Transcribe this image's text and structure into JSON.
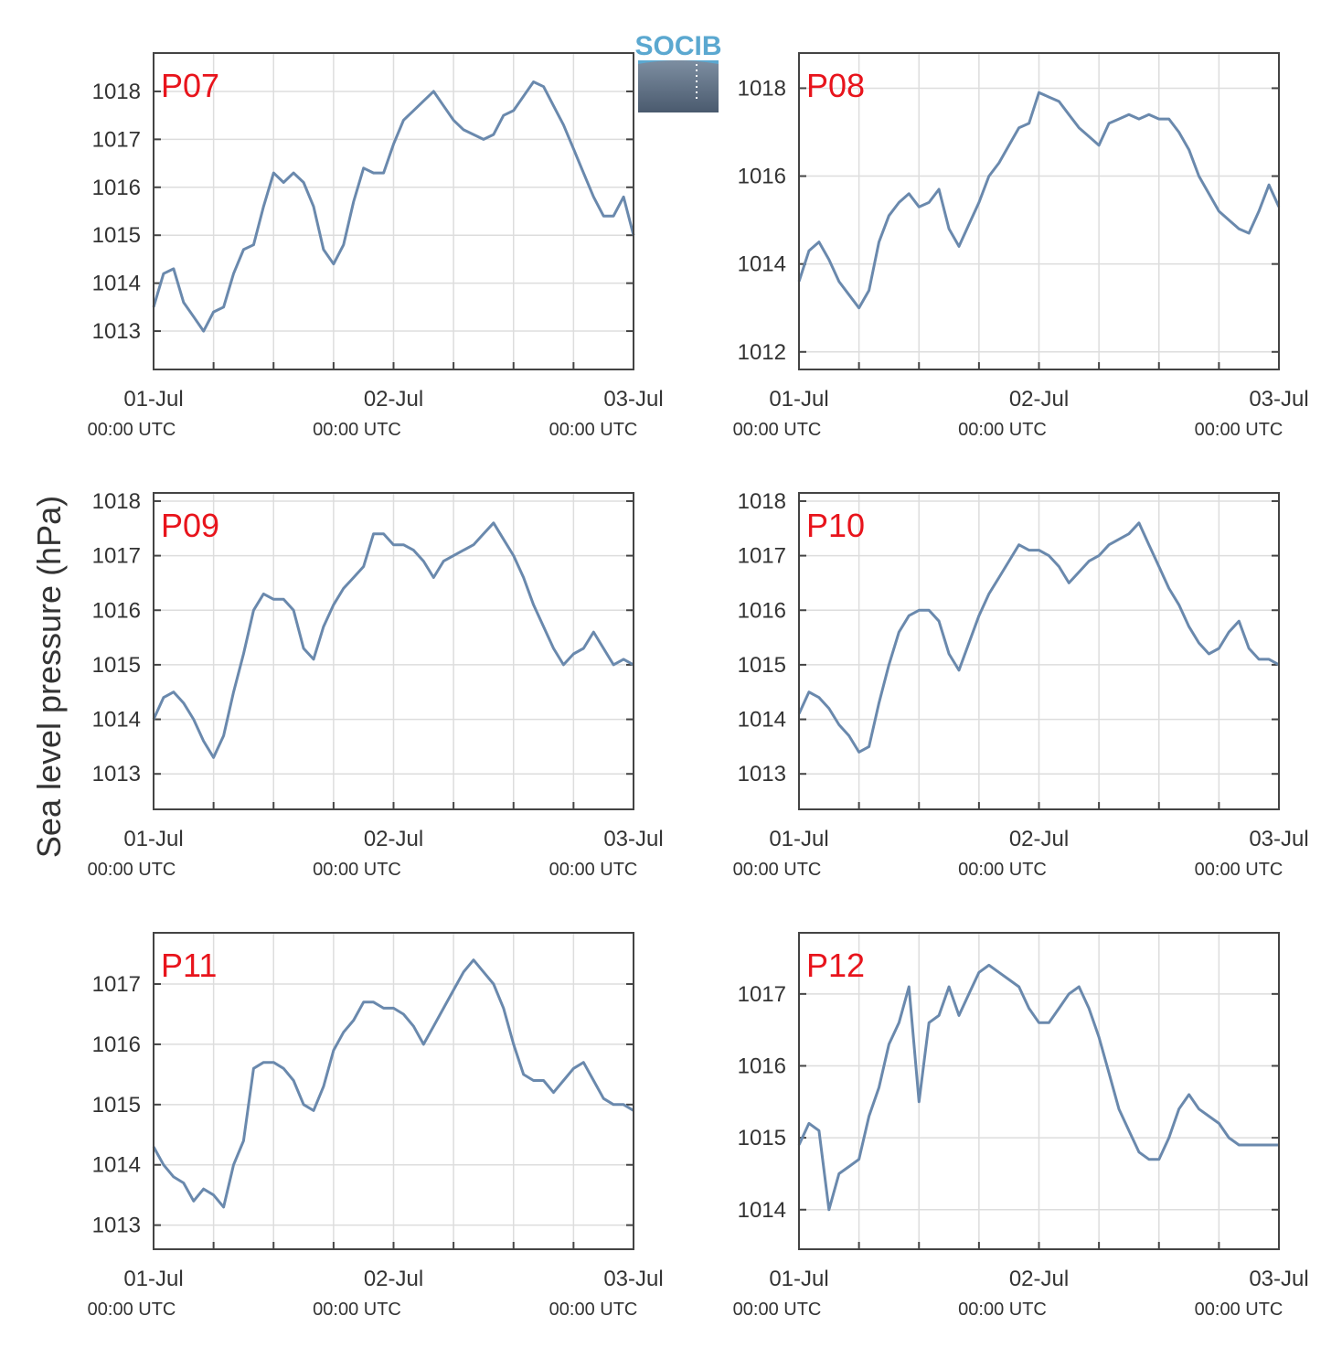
{
  "figure": {
    "ylabel": "Sea level pressure (hPa)",
    "logo_text": "SOCIB",
    "colors": {
      "series": "#6a89ad",
      "panel_label": "#e8141c",
      "grid": "#dddddd",
      "frame": "#444444",
      "logo_top": "#5ba8d0",
      "logo_bottom": "#4a5a6e"
    }
  },
  "chart_data": [
    {
      "type": "line",
      "panel_label": "P07",
      "x_ticks": [
        {
          "date": "01-Jul",
          "time": "00:00 UTC"
        },
        {
          "date": "02-Jul",
          "time": "00:00 UTC"
        },
        {
          "date": "03-Jul",
          "time": "00:00 UTC"
        }
      ],
      "xlim": [
        "2024-07-01T00:00",
        "2024-07-03T00:00"
      ],
      "ylim": [
        1012.2,
        1018.8
      ],
      "yticks": [
        1013,
        1014,
        1015,
        1016,
        1017,
        1018
      ],
      "grid": true,
      "x_hours": [
        0,
        1,
        2,
        3,
        4,
        5,
        6,
        7,
        8,
        9,
        10,
        11,
        12,
        13,
        14,
        15,
        16,
        17,
        18,
        19,
        20,
        21,
        22,
        23,
        24,
        25,
        26,
        27,
        28,
        29,
        30,
        31,
        32,
        33,
        34,
        35,
        36,
        37,
        38,
        39,
        40,
        41,
        42,
        43,
        44,
        45,
        46,
        47,
        48
      ],
      "values": [
        1013.5,
        1014.2,
        1014.3,
        1013.6,
        1013.3,
        1013.0,
        1013.4,
        1013.5,
        1014.2,
        1014.7,
        1014.8,
        1015.6,
        1016.3,
        1016.1,
        1016.3,
        1016.1,
        1015.6,
        1014.7,
        1014.4,
        1014.8,
        1015.7,
        1016.4,
        1016.3,
        1016.3,
        1016.9,
        1017.4,
        1017.6,
        1017.8,
        1018.0,
        1017.7,
        1017.4,
        1017.2,
        1017.1,
        1017.0,
        1017.1,
        1017.5,
        1017.6,
        1017.9,
        1018.2,
        1018.1,
        1017.7,
        1017.3,
        1016.8,
        1016.3,
        1015.8,
        1015.4,
        1015.4,
        1015.8,
        1015.0
      ],
      "xlabel": "",
      "ylabel": "Sea level pressure (hPa)"
    },
    {
      "type": "line",
      "panel_label": "P08",
      "x_ticks": [
        {
          "date": "01-Jul",
          "time": "00:00 UTC"
        },
        {
          "date": "02-Jul",
          "time": "00:00 UTC"
        },
        {
          "date": "03-Jul",
          "time": "00:00 UTC"
        }
      ],
      "xlim": [
        "2024-07-01T00:00",
        "2024-07-03T00:00"
      ],
      "ylim": [
        1011.6,
        1018.8
      ],
      "yticks": [
        1012,
        1014,
        1016,
        1018
      ],
      "grid": true,
      "x_hours": [
        0,
        1,
        2,
        3,
        4,
        5,
        6,
        7,
        8,
        9,
        10,
        11,
        12,
        13,
        14,
        15,
        16,
        17,
        18,
        19,
        20,
        21,
        22,
        23,
        24,
        25,
        26,
        27,
        28,
        29,
        30,
        31,
        32,
        33,
        34,
        35,
        36,
        37,
        38,
        39,
        40,
        41,
        42,
        43,
        44,
        45,
        46,
        47,
        48
      ],
      "values": [
        1013.6,
        1014.3,
        1014.5,
        1014.1,
        1013.6,
        1013.3,
        1013.0,
        1013.4,
        1014.5,
        1015.1,
        1015.4,
        1015.6,
        1015.3,
        1015.4,
        1015.7,
        1014.8,
        1014.4,
        1014.9,
        1015.4,
        1016.0,
        1016.3,
        1016.7,
        1017.1,
        1017.2,
        1017.9,
        1017.8,
        1017.7,
        1017.4,
        1017.1,
        1016.9,
        1016.7,
        1017.2,
        1017.3,
        1017.4,
        1017.3,
        1017.4,
        1017.3,
        1017.3,
        1017.0,
        1016.6,
        1016.0,
        1015.6,
        1015.2,
        1015.0,
        1014.8,
        1014.7,
        1015.2,
        1015.8,
        1015.3
      ],
      "xlabel": "",
      "ylabel": "Sea level pressure (hPa)"
    },
    {
      "type": "line",
      "panel_label": "P09",
      "x_ticks": [
        {
          "date": "01-Jul",
          "time": "00:00 UTC"
        },
        {
          "date": "02-Jul",
          "time": "00:00 UTC"
        },
        {
          "date": "03-Jul",
          "time": "00:00 UTC"
        }
      ],
      "xlim": [
        "2024-07-01T00:00",
        "2024-07-03T00:00"
      ],
      "ylim": [
        1012.35,
        1018.15
      ],
      "yticks": [
        1013,
        1014,
        1015,
        1016,
        1017,
        1018
      ],
      "grid": true,
      "x_hours": [
        0,
        1,
        2,
        3,
        4,
        5,
        6,
        7,
        8,
        9,
        10,
        11,
        12,
        13,
        14,
        15,
        16,
        17,
        18,
        19,
        20,
        21,
        22,
        23,
        24,
        25,
        26,
        27,
        28,
        29,
        30,
        31,
        32,
        33,
        34,
        35,
        36,
        37,
        38,
        39,
        40,
        41,
        42,
        43,
        44,
        45,
        46,
        47,
        48
      ],
      "values": [
        1014.0,
        1014.4,
        1014.5,
        1014.3,
        1014.0,
        1013.6,
        1013.3,
        1013.7,
        1014.5,
        1015.2,
        1016.0,
        1016.3,
        1016.2,
        1016.2,
        1016.0,
        1015.3,
        1015.1,
        1015.7,
        1016.1,
        1016.4,
        1016.6,
        1016.8,
        1017.4,
        1017.4,
        1017.2,
        1017.2,
        1017.1,
        1016.9,
        1016.6,
        1016.9,
        1017.0,
        1017.1,
        1017.2,
        1017.4,
        1017.6,
        1017.3,
        1017.0,
        1016.6,
        1016.1,
        1015.7,
        1015.3,
        1015.0,
        1015.2,
        1015.3,
        1015.6,
        1015.3,
        1015.0,
        1015.1,
        1015.0
      ],
      "xlabel": "",
      "ylabel": "Sea level pressure (hPa)"
    },
    {
      "type": "line",
      "panel_label": "P10",
      "x_ticks": [
        {
          "date": "01-Jul",
          "time": "00:00 UTC"
        },
        {
          "date": "02-Jul",
          "time": "00:00 UTC"
        },
        {
          "date": "03-Jul",
          "time": "00:00 UTC"
        }
      ],
      "xlim": [
        "2024-07-01T00:00",
        "2024-07-03T00:00"
      ],
      "ylim": [
        1012.35,
        1018.15
      ],
      "yticks": [
        1013,
        1014,
        1015,
        1016,
        1017,
        1018
      ],
      "grid": true,
      "x_hours": [
        0,
        1,
        2,
        3,
        4,
        5,
        6,
        7,
        8,
        9,
        10,
        11,
        12,
        13,
        14,
        15,
        16,
        17,
        18,
        19,
        20,
        21,
        22,
        23,
        24,
        25,
        26,
        27,
        28,
        29,
        30,
        31,
        32,
        33,
        34,
        35,
        36,
        37,
        38,
        39,
        40,
        41,
        42,
        43,
        44,
        45,
        46,
        47,
        48
      ],
      "values": [
        1014.1,
        1014.5,
        1014.4,
        1014.2,
        1013.9,
        1013.7,
        1013.4,
        1013.5,
        1014.3,
        1015.0,
        1015.6,
        1015.9,
        1016.0,
        1016.0,
        1015.8,
        1015.2,
        1014.9,
        1015.4,
        1015.9,
        1016.3,
        1016.6,
        1016.9,
        1017.2,
        1017.1,
        1017.1,
        1017.0,
        1016.8,
        1016.5,
        1016.7,
        1016.9,
        1017.0,
        1017.2,
        1017.3,
        1017.4,
        1017.6,
        1017.2,
        1016.8,
        1016.4,
        1016.1,
        1015.7,
        1015.4,
        1015.2,
        1015.3,
        1015.6,
        1015.8,
        1015.3,
        1015.1,
        1015.1,
        1015.0
      ],
      "xlabel": "",
      "ylabel": "Sea level pressure (hPa)"
    },
    {
      "type": "line",
      "panel_label": "P11",
      "x_ticks": [
        {
          "date": "01-Jul",
          "time": "00:00 UTC"
        },
        {
          "date": "02-Jul",
          "time": "00:00 UTC"
        },
        {
          "date": "03-Jul",
          "time": "00:00 UTC"
        }
      ],
      "xlim": [
        "2024-07-01T00:00",
        "2024-07-03T00:00"
      ],
      "ylim": [
        1012.6,
        1017.85
      ],
      "yticks": [
        1013,
        1014,
        1015,
        1016,
        1017
      ],
      "grid": true,
      "x_hours": [
        0,
        1,
        2,
        3,
        4,
        5,
        6,
        7,
        8,
        9,
        10,
        11,
        12,
        13,
        14,
        15,
        16,
        17,
        18,
        19,
        20,
        21,
        22,
        23,
        24,
        25,
        26,
        27,
        28,
        29,
        30,
        31,
        32,
        33,
        34,
        35,
        36,
        37,
        38,
        39,
        40,
        41,
        42,
        43,
        44,
        45,
        46,
        47,
        48
      ],
      "values": [
        1014.3,
        1014.0,
        1013.8,
        1013.7,
        1013.4,
        1013.6,
        1013.5,
        1013.3,
        1014.0,
        1014.4,
        1015.6,
        1015.7,
        1015.7,
        1015.6,
        1015.4,
        1015.0,
        1014.9,
        1015.3,
        1015.9,
        1016.2,
        1016.4,
        1016.7,
        1016.7,
        1016.6,
        1016.6,
        1016.5,
        1016.3,
        1016.0,
        1016.3,
        1016.6,
        1016.9,
        1017.2,
        1017.4,
        1017.2,
        1017.0,
        1016.6,
        1016.0,
        1015.5,
        1015.4,
        1015.4,
        1015.2,
        1015.4,
        1015.6,
        1015.7,
        1015.4,
        1015.1,
        1015.0,
        1015.0,
        1014.9
      ],
      "xlabel": "",
      "ylabel": "Sea level pressure (hPa)"
    },
    {
      "type": "line",
      "panel_label": "P12",
      "x_ticks": [
        {
          "date": "01-Jul",
          "time": "00:00 UTC"
        },
        {
          "date": "02-Jul",
          "time": "00:00 UTC"
        },
        {
          "date": "03-Jul",
          "time": "00:00 UTC"
        }
      ],
      "xlim": [
        "2024-07-01T00:00",
        "2024-07-03T00:00"
      ],
      "ylim": [
        1013.45,
        1017.85
      ],
      "yticks": [
        1014,
        1015,
        1016,
        1017
      ],
      "grid": true,
      "x_hours": [
        0,
        1,
        2,
        3,
        4,
        5,
        6,
        7,
        8,
        9,
        10,
        11,
        12,
        13,
        14,
        15,
        16,
        17,
        18,
        19,
        20,
        21,
        22,
        23,
        24,
        25,
        26,
        27,
        28,
        29,
        30,
        31,
        32,
        33,
        34,
        35,
        36,
        37,
        38,
        39,
        40,
        41,
        42,
        43,
        44,
        45,
        46,
        47,
        48
      ],
      "values": [
        1014.9,
        1015.2,
        1015.1,
        1014.0,
        1014.5,
        1014.6,
        1014.7,
        1015.3,
        1015.7,
        1016.3,
        1016.6,
        1017.1,
        1015.5,
        1016.6,
        1016.7,
        1017.1,
        1016.7,
        1017.0,
        1017.3,
        1017.4,
        1017.3,
        1017.2,
        1017.1,
        1016.8,
        1016.6,
        1016.6,
        1016.8,
        1017.0,
        1017.1,
        1016.8,
        1016.4,
        1015.9,
        1015.4,
        1015.1,
        1014.8,
        1014.7,
        1014.7,
        1015.0,
        1015.4,
        1015.6,
        1015.4,
        1015.3,
        1015.2,
        1015.0,
        1014.9,
        1014.9,
        1014.9,
        1014.9,
        1014.9
      ],
      "xlabel": "",
      "ylabel": "Sea level pressure (hPa)"
    }
  ]
}
